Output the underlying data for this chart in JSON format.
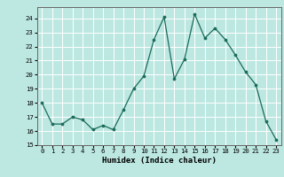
{
  "x": [
    0,
    1,
    2,
    3,
    4,
    5,
    6,
    7,
    8,
    9,
    10,
    11,
    12,
    13,
    14,
    15,
    16,
    17,
    18,
    19,
    20,
    21,
    22,
    23
  ],
  "y": [
    18.0,
    16.5,
    16.5,
    17.0,
    16.8,
    16.1,
    16.4,
    16.1,
    17.5,
    19.0,
    19.9,
    22.5,
    24.1,
    19.7,
    21.1,
    24.3,
    22.6,
    23.3,
    22.5,
    21.4,
    20.2,
    19.3,
    16.7,
    15.4
  ],
  "xlabel": "Humidex (Indice chaleur)",
  "xlim": [
    -0.5,
    23.5
  ],
  "ylim": [
    15,
    24.8
  ],
  "yticks": [
    15,
    16,
    17,
    18,
    19,
    20,
    21,
    22,
    23,
    24
  ],
  "xticks": [
    0,
    1,
    2,
    3,
    4,
    5,
    6,
    7,
    8,
    9,
    10,
    11,
    12,
    13,
    14,
    15,
    16,
    17,
    18,
    19,
    20,
    21,
    22,
    23
  ],
  "line_color": "#1a6b5a",
  "marker_color": "#1a6b5a",
  "bg_color": "#bde8e2",
  "grid_color": "#ffffff",
  "fig_bg": "#bde8e2",
  "spine_color": "#666666",
  "tick_label_size": 5.2,
  "xlabel_size": 6.5
}
